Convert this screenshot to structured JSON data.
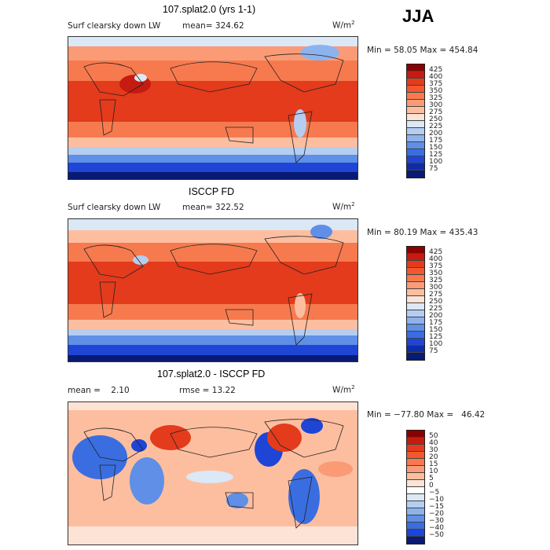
{
  "season": "JJA",
  "panels": [
    {
      "title": "107.splat2.0 (yrs 1-1)",
      "left_text": "Surf clearsky down LW",
      "mean_label": "mean=",
      "mean_value": "324.62",
      "units_base": "W/m",
      "units_exp": "2",
      "minmax": "Min =  58.05 Max = 454.84"
    },
    {
      "title": "ISCCP FD",
      "left_text": "Surf clearsky down LW",
      "mean_label": "mean=",
      "mean_value": "322.52",
      "units_base": "W/m",
      "units_exp": "2",
      "minmax": "Min =  80.19 Max = 435.43"
    },
    {
      "title": "107.splat2.0 - ISCCP FD",
      "left_text": "mean =    2.10",
      "mean_label": "rmse =",
      "mean_value": "13.22",
      "units_base": "W/m",
      "units_exp": "2",
      "minmax": "Min = −77.80 Max =   46.42"
    }
  ],
  "chart_data": [
    {
      "type": "heatmap",
      "title": "107.splat2.0 (yrs 1-1)",
      "variable": "Surf clearsky down LW",
      "units": "W/m2",
      "mean": 324.62,
      "min": 58.05,
      "max": 454.84,
      "levels": [
        "425",
        "400",
        "375",
        "350",
        "325",
        "300",
        "275",
        "250",
        "225",
        "200",
        "175",
        "150",
        "125",
        "100",
        "75"
      ],
      "colors": [
        "#8b0000",
        "#c51b10",
        "#e33b1c",
        "#f2572d",
        "#f77a4f",
        "#fb9b76",
        "#fdbea0",
        "#fde3d6",
        "#dbe8f6",
        "#b4cdf1",
        "#8db3ee",
        "#5f8fe6",
        "#3a6ee0",
        "#1f45d6",
        "#0e2ca6",
        "#081a73"
      ]
    },
    {
      "type": "heatmap",
      "title": "ISCCP FD",
      "variable": "Surf clearsky down LW",
      "units": "W/m2",
      "mean": 322.52,
      "min": 80.19,
      "max": 435.43,
      "levels": [
        "425",
        "400",
        "375",
        "350",
        "325",
        "300",
        "275",
        "250",
        "225",
        "200",
        "175",
        "150",
        "125",
        "100",
        "75"
      ],
      "colors": [
        "#8b0000",
        "#c51b10",
        "#e33b1c",
        "#f2572d",
        "#f77a4f",
        "#fb9b76",
        "#fdbea0",
        "#fde3d6",
        "#dbe8f6",
        "#b4cdf1",
        "#8db3ee",
        "#5f8fe6",
        "#3a6ee0",
        "#1f45d6",
        "#0e2ca6",
        "#081a73"
      ]
    },
    {
      "type": "heatmap",
      "title": "107.splat2.0 - ISCCP FD",
      "variable": "difference",
      "units": "W/m2",
      "mean": 2.1,
      "rmse": 13.22,
      "min": -77.8,
      "max": 46.42,
      "levels": [
        "50",
        "40",
        "30",
        "20",
        "15",
        "10",
        "5",
        "0",
        "−5",
        "−10",
        "−15",
        "−20",
        "−30",
        "−40",
        "−50"
      ],
      "colors": [
        "#8b0000",
        "#c51b10",
        "#e33b1c",
        "#f2572d",
        "#f77a4f",
        "#fb9b76",
        "#fdbea0",
        "#fde3d6",
        "#ffffff",
        "#dbe8f6",
        "#b4cdf1",
        "#8db3ee",
        "#5f8fe6",
        "#3a6ee0",
        "#1f45d6",
        "#081a73"
      ]
    }
  ]
}
